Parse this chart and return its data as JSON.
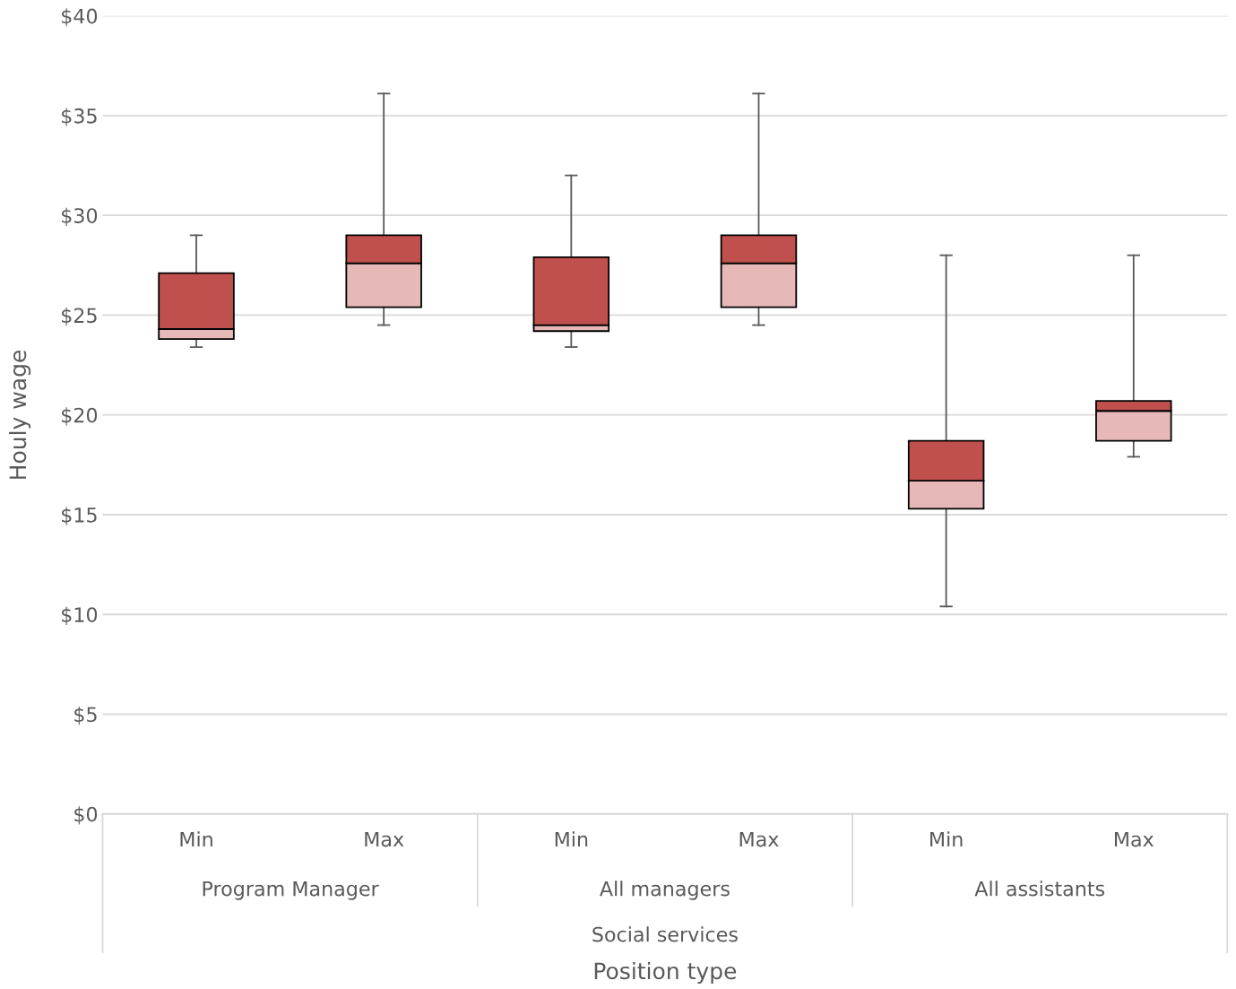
{
  "chart_data": {
    "type": "box",
    "categories": [
      "Min",
      "Max",
      "Min",
      "Max",
      "Min",
      "Max"
    ],
    "series": [
      {
        "color": "#e6b8b7",
        "boxes": [
          {
            "low": 23.4,
            "q1": 23.8,
            "median": 24.3,
            "q3": 27.1,
            "high": 29
          },
          {
            "low": 24.5,
            "q1": 25.4,
            "median": 27.6,
            "q3": 29,
            "high": 36.1
          },
          {
            "low": 23.4,
            "q1": 24.2,
            "median": 24.5,
            "q3": 27.9,
            "high": 32
          },
          {
            "low": 24.5,
            "q1": 25.4,
            "median": 27.6,
            "q3": 29,
            "high": 36.1
          },
          {
            "low": 10.4,
            "q1": 15.3,
            "median": 16.7,
            "q3": 18.7,
            "high": 28
          },
          {
            "low": 17.9,
            "q1": 18.7,
            "median": 20.2,
            "q3": 20.7,
            "high": 28
          }
        ]
      }
    ],
    "colors": [
      "#c0504d",
      "#c0504d",
      "#c0504d",
      "#c0504d",
      "#c0504d",
      "#c0504d"
    ],
    "annotations": [
      "Program Manager",
      "All managers",
      "All assistants",
      "Social services",
      "Position type"
    ],
    "ylabel": "Houly wage",
    "ylim": [
      0,
      40
    ],
    "yticks": [
      {
        "value": 0,
        "label": "$0"
      },
      {
        "value": 5,
        "label": "$5"
      },
      {
        "value": 10,
        "label": "$10"
      },
      {
        "value": 15,
        "label": "$15"
      },
      {
        "value": 20,
        "label": "$20"
      },
      {
        "value": 25,
        "label": "$25"
      },
      {
        "value": 30,
        "label": "$30"
      },
      {
        "value": 35,
        "label": "$35"
      },
      {
        "value": 40,
        "label": "$40"
      }
    ],
    "grid": "y"
  }
}
